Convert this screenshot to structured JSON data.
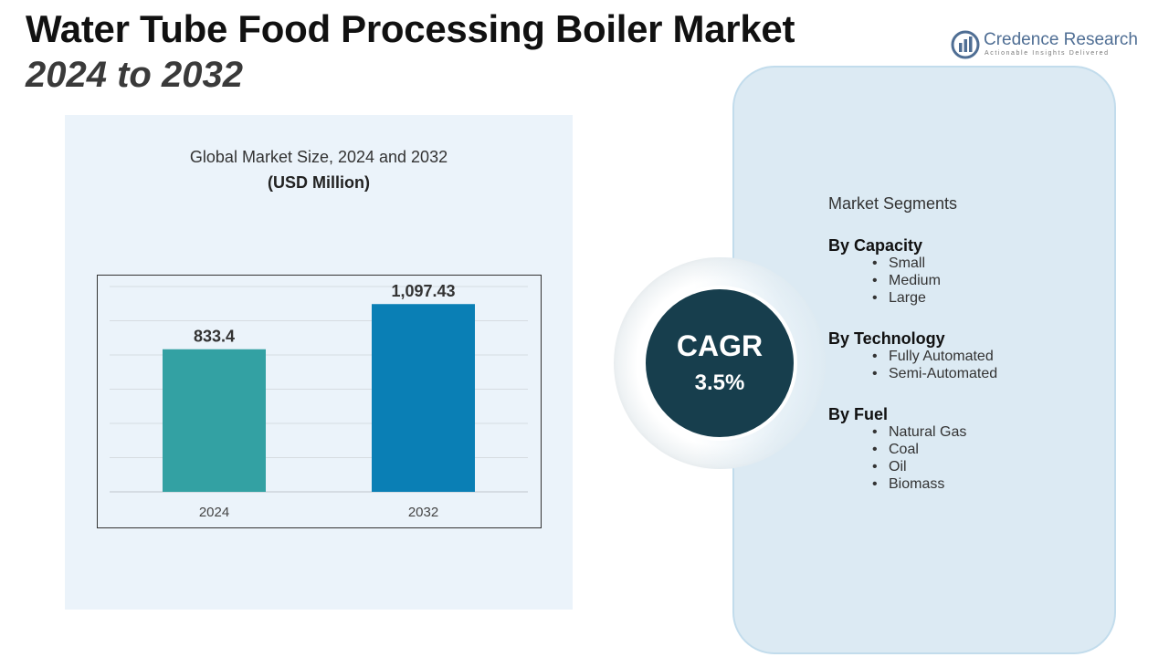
{
  "title": {
    "line1": "Water Tube Food Processing Boiler Market",
    "line2": "2024 to 2032"
  },
  "logo": {
    "name": "Credence Research",
    "tagline": "Actionable Insights Delivered",
    "icon": "bar-chart-logo-icon",
    "color": "#4f6e94"
  },
  "chart_data": {
    "type": "bar",
    "title": "Global Market Size, 2024 and 2032",
    "unit": "(USD Million)",
    "categories": [
      "2024",
      "2032"
    ],
    "values": [
      833.4,
      1097.43
    ],
    "value_labels": [
      "833.4",
      "1,097.43"
    ],
    "colors": [
      "#33a1a3",
      "#0a7fb5"
    ],
    "ylim": [
      0,
      1200
    ],
    "grid": true
  },
  "cagr": {
    "label": "CAGR",
    "value": "3.5%"
  },
  "segments": {
    "heading": "Market Segments",
    "groups": [
      {
        "title": "By Capacity",
        "items": [
          "Small",
          "Medium",
          "Large"
        ]
      },
      {
        "title": "By Technology",
        "items": [
          "Fully Automated",
          "Semi-Automated"
        ]
      },
      {
        "title": "By Fuel",
        "items": [
          "Natural Gas",
          "Coal",
          "Oil",
          "Biomass"
        ]
      }
    ]
  },
  "colors": {
    "panel_bg": "#ebf3fa",
    "segments_bg": "#dceaf3",
    "cagr_circle": "#173e4d"
  }
}
